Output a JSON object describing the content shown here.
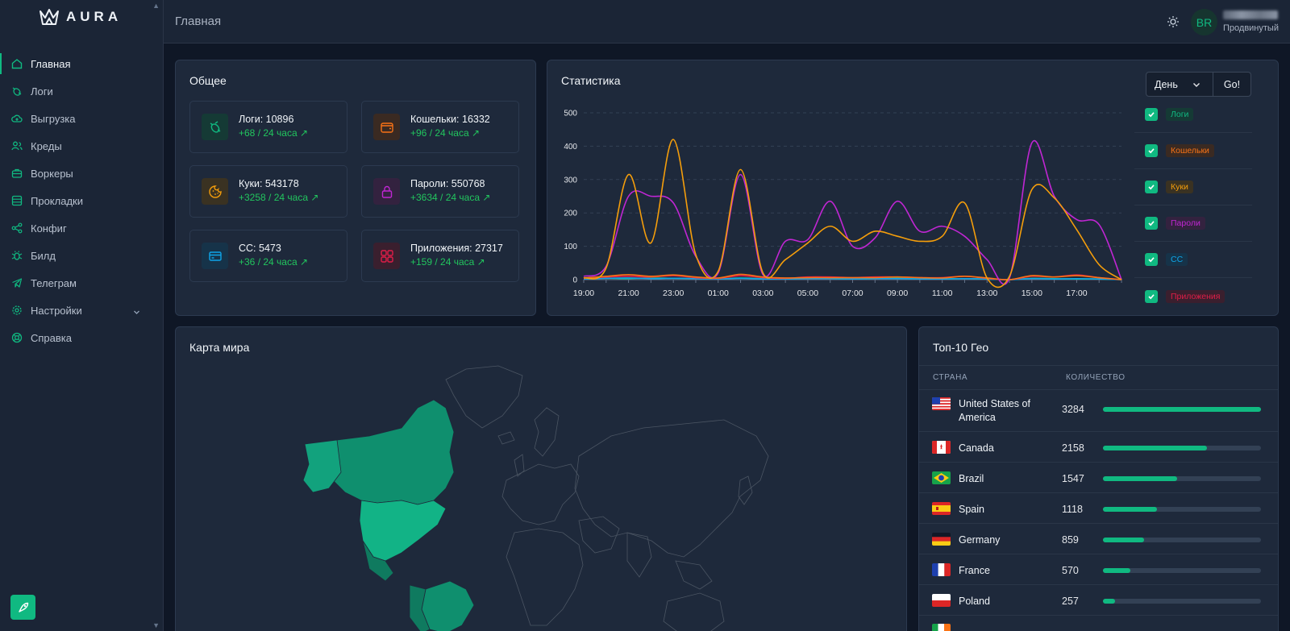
{
  "brand": {
    "name": "AURA"
  },
  "sidebar": {
    "items": [
      {
        "label": "Главная",
        "icon": "home-icon",
        "active": true
      },
      {
        "label": "Логи",
        "icon": "bug-icon"
      },
      {
        "label": "Выгрузка",
        "icon": "cloud-upload-icon"
      },
      {
        "label": "Креды",
        "icon": "users-icon"
      },
      {
        "label": "Воркеры",
        "icon": "briefcase-icon"
      },
      {
        "label": "Прокладки",
        "icon": "database-icon"
      },
      {
        "label": "Конфиг",
        "icon": "share-icon"
      },
      {
        "label": "Билд",
        "icon": "bug-build-icon"
      },
      {
        "label": "Телеграм",
        "icon": "telegram-icon"
      },
      {
        "label": "Настройки",
        "icon": "gear-icon",
        "has_submenu": true
      },
      {
        "label": "Справка",
        "icon": "lifebuoy-icon"
      }
    ]
  },
  "header": {
    "title": "Главная",
    "user": {
      "initials": "BR",
      "status": "Продвинутый"
    }
  },
  "overview": {
    "title": "Общее",
    "stats": [
      {
        "label": "Логи: 10896",
        "delta": "+68 / 24 часа",
        "icon": "bug-icon",
        "color": "#10b981"
      },
      {
        "label": "Кошельки: 16332",
        "delta": "+96 / 24 часа",
        "icon": "wallet-icon",
        "color": "#f97316"
      },
      {
        "label": "Куки: 543178",
        "delta": "+3258 / 24 часа",
        "icon": "cookie-icon",
        "color": "#f59e0b"
      },
      {
        "label": "Пароли: 550768",
        "delta": "+3634 / 24 часа",
        "icon": "lock-icon",
        "color": "#c026d3"
      },
      {
        "label": "CC: 5473",
        "delta": "+36 / 24 часа",
        "icon": "credit-card-icon",
        "color": "#0ea5e9"
      },
      {
        "label": "Приложения: 27317",
        "delta": "+159 / 24 часа",
        "icon": "apps-grid-icon",
        "color": "#e11d48"
      }
    ]
  },
  "statistics": {
    "title": "Статистика",
    "period": "День",
    "go_label": "Go!",
    "legend": [
      {
        "label": "Логи",
        "color": "#10b981"
      },
      {
        "label": "Кошельки",
        "color": "#f97316"
      },
      {
        "label": "Куки",
        "color": "#f59e0b"
      },
      {
        "label": "Пароли",
        "color": "#c026d3"
      },
      {
        "label": "CC",
        "color": "#0ea5e9"
      },
      {
        "label": "Приложения",
        "color": "#e11d48"
      }
    ]
  },
  "chart_data": {
    "type": "line",
    "x": [
      "19:00",
      "20:00",
      "21:00",
      "22:00",
      "23:00",
      "00:00",
      "01:00",
      "02:00",
      "03:00",
      "04:00",
      "05:00",
      "06:00",
      "07:00",
      "08:00",
      "09:00",
      "10:00",
      "11:00",
      "12:00",
      "13:00",
      "14:00",
      "15:00",
      "16:00",
      "17:00",
      "18:00",
      "19:00"
    ],
    "x_tick_labels": [
      "19:00",
      "21:00",
      "23:00",
      "01:00",
      "03:00",
      "05:00",
      "07:00",
      "09:00",
      "11:00",
      "13:00",
      "15:00",
      "17:00"
    ],
    "ylim": [
      0,
      500
    ],
    "y_ticks": [
      0,
      100,
      200,
      300,
      400,
      500
    ],
    "grid": true,
    "series": [
      {
        "name": "Логи",
        "color": "#10b981",
        "values": [
          3,
          4,
          3,
          5,
          4,
          3,
          2,
          5,
          3,
          2,
          4,
          3,
          2,
          3,
          4,
          3,
          2,
          3,
          2,
          0,
          4,
          3,
          2,
          2,
          0
        ]
      },
      {
        "name": "Кошельки",
        "color": "#f97316",
        "values": [
          5,
          10,
          15,
          10,
          14,
          8,
          5,
          16,
          8,
          5,
          6,
          6,
          6,
          6,
          8,
          6,
          5,
          10,
          5,
          0,
          12,
          8,
          12,
          6,
          0
        ]
      },
      {
        "name": "Куки",
        "color": "#f59e0b",
        "values": [
          5,
          35,
          315,
          110,
          420,
          75,
          25,
          330,
          20,
          60,
          110,
          160,
          115,
          145,
          130,
          115,
          130,
          230,
          5,
          10,
          270,
          245,
          150,
          45,
          0
        ]
      },
      {
        "name": "Пароли",
        "color": "#c026d3",
        "values": [
          10,
          40,
          250,
          250,
          230,
          70,
          20,
          315,
          15,
          115,
          120,
          235,
          100,
          125,
          235,
          145,
          160,
          130,
          60,
          5,
          410,
          250,
          180,
          165,
          0
        ]
      },
      {
        "name": "CC",
        "color": "#0ea5e9",
        "values": [
          2,
          4,
          5,
          3,
          4,
          3,
          2,
          4,
          2,
          2,
          3,
          3,
          2,
          3,
          3,
          2,
          2,
          3,
          2,
          0,
          3,
          2,
          3,
          2,
          0
        ]
      },
      {
        "name": "Приложения",
        "color": "#e11d48",
        "values": [
          4,
          8,
          10,
          8,
          12,
          6,
          4,
          12,
          6,
          4,
          8,
          8,
          6,
          8,
          8,
          6,
          6,
          10,
          4,
          0,
          10,
          8,
          14,
          6,
          0
        ]
      }
    ]
  },
  "map": {
    "title": "Карта мира"
  },
  "geo": {
    "title": "Топ-10 Гео",
    "col_country": "СТРАНА",
    "col_count": "КОЛИЧЕСТВО",
    "max": 3284,
    "rows": [
      {
        "country": "United States of America",
        "count": 3284,
        "flag": "us-flag"
      },
      {
        "country": "Canada",
        "count": 2158,
        "flag": "ca-flag"
      },
      {
        "country": "Brazil",
        "count": 1547,
        "flag": "br-flag"
      },
      {
        "country": "Spain",
        "count": 1118,
        "flag": "es-flag"
      },
      {
        "country": "Germany",
        "count": 859,
        "flag": "de-flag"
      },
      {
        "country": "France",
        "count": 570,
        "flag": "fr-flag"
      },
      {
        "country": "Poland",
        "count": 257,
        "flag": "pl-flag"
      }
    ]
  }
}
